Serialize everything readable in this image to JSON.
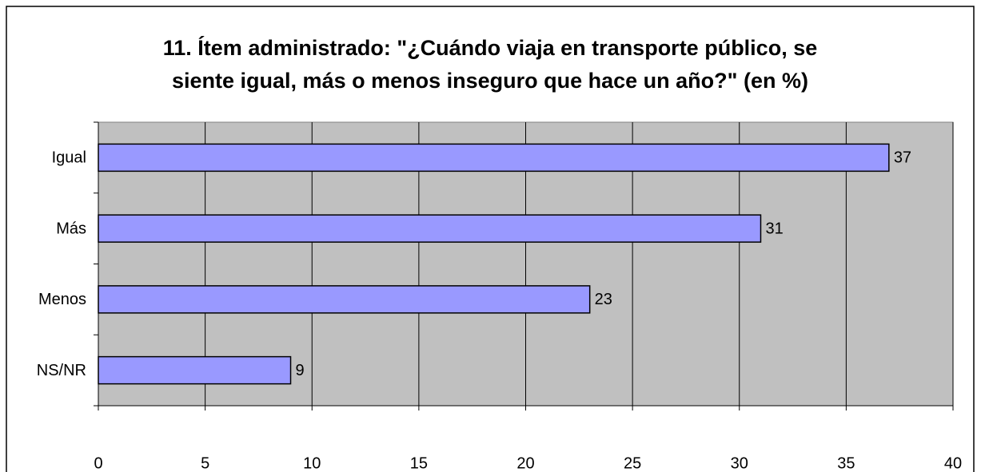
{
  "chart_data": {
    "type": "bar",
    "orientation": "horizontal",
    "title": [
      "11. Ítem administrado: \"¿Cuándo viaja en transporte público, se",
      "siente igual, más o menos inseguro que hace un año?\" (en %)"
    ],
    "categories": [
      "Igual",
      "Más",
      "Menos",
      "NS/NR"
    ],
    "values": [
      37,
      31,
      23,
      9
    ],
    "color": "#9999ff",
    "xlim": [
      0,
      40
    ],
    "xticks": [
      0,
      5,
      10,
      15,
      20,
      25,
      30,
      35,
      40
    ],
    "grid": true
  }
}
